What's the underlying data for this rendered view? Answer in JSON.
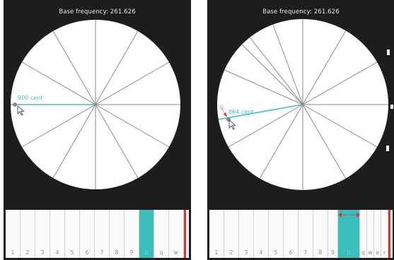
{
  "colors": {
    "background": "#1d1d1d",
    "dial_face": "#ffffff",
    "dial_lines": "#8a8a8a",
    "accent_teal": "#3bbfbd",
    "accent_red": "#d9343a"
  },
  "panels": [
    {
      "base_frequency_label": "Base frequency: 261.626",
      "cent_label": "900 cent",
      "key_labels": [
        "1",
        "2",
        "3",
        "4",
        "5",
        "6",
        "7",
        "8",
        "9",
        "0",
        "q",
        "w"
      ],
      "selected_key": "0"
    },
    {
      "base_frequency_label": "Base frequency: 261.626",
      "cent_label": "864 cent",
      "key_labels": [
        "1",
        "2",
        "3",
        "4",
        "5",
        "6",
        "7",
        "8",
        "9",
        "0",
        "q",
        "w",
        "e",
        "r"
      ],
      "selected_key": "0"
    }
  ],
  "icons": {
    "cursor": "mouse-pointer-icon",
    "drag_handle": "drag-handle-icon",
    "resize_arrow": "horizontal-resize-arrow-icon"
  }
}
